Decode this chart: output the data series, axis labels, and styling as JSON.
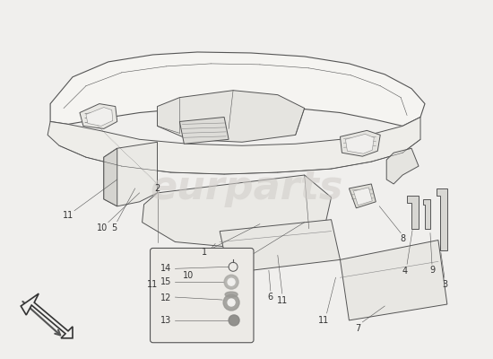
{
  "bg": "#f0efed",
  "lc": "#555555",
  "lc_thin": "#888888",
  "lw_main": 0.7,
  "lw_thin": 0.4,
  "fs_label": 7,
  "watermark_text": "eurparts",
  "watermark_color": "#d0ccc8",
  "watermark_alpha": 0.55,
  "watermark_fontsize": 32
}
